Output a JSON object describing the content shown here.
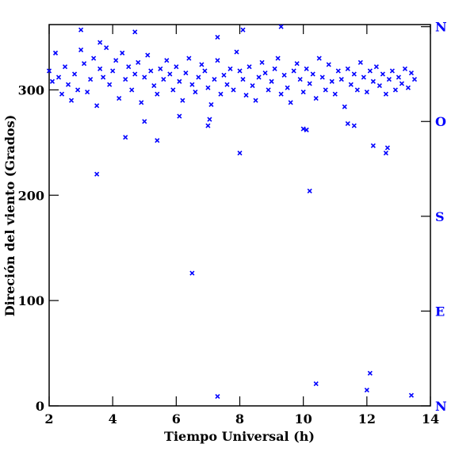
{
  "chart_data": {
    "type": "scatter",
    "xlabel": "Tiempo Universal (h)",
    "ylabel": "Direción del viento (Grados)",
    "xlim": [
      2,
      14
    ],
    "xticks": [
      2,
      4,
      6,
      8,
      10,
      12,
      14
    ],
    "ylim": [
      0,
      362
    ],
    "yticks": [
      0,
      100,
      200,
      300
    ],
    "y2lim": [
      0,
      362
    ],
    "y2ticks": [
      {
        "value": 0,
        "label": "N"
      },
      {
        "value": 90,
        "label": "E"
      },
      {
        "value": 180,
        "label": "S"
      },
      {
        "value": 270,
        "label": "O"
      },
      {
        "value": 360,
        "label": "N"
      }
    ],
    "y2color": "#0000ff",
    "series": [
      {
        "color": "#0000ff",
        "x": [
          2.0,
          2.1,
          2.2,
          2.3,
          2.4,
          2.5,
          2.6,
          2.7,
          2.8,
          2.9,
          3.0,
          3.1,
          3.2,
          3.3,
          3.4,
          3.5,
          3.6,
          3.7,
          3.8,
          3.9,
          4.0,
          4.1,
          4.2,
          4.3,
          4.4,
          4.5,
          4.6,
          4.7,
          4.8,
          4.9,
          5.0,
          5.1,
          5.2,
          5.3,
          5.4,
          5.5,
          5.6,
          5.7,
          5.8,
          5.9,
          6.0,
          6.1,
          6.2,
          6.3,
          6.4,
          6.5,
          6.6,
          6.7,
          6.8,
          6.9,
          7.0,
          7.1,
          7.2,
          7.3,
          7.4,
          7.5,
          7.6,
          7.7,
          7.8,
          7.9,
          8.0,
          8.1,
          8.2,
          8.3,
          8.4,
          8.5,
          8.6,
          8.7,
          8.8,
          8.9,
          9.0,
          9.1,
          9.2,
          9.3,
          9.4,
          9.5,
          9.6,
          9.7,
          9.8,
          9.9,
          10.0,
          10.1,
          10.2,
          10.3,
          10.4,
          10.5,
          10.6,
          10.7,
          10.8,
          10.9,
          11.0,
          11.1,
          11.2,
          11.3,
          11.4,
          11.5,
          11.6,
          11.7,
          11.8,
          11.9,
          12.0,
          12.1,
          12.2,
          12.3,
          12.4,
          12.5,
          12.6,
          12.7,
          12.8,
          12.9,
          13.0,
          13.1,
          13.2,
          13.3,
          13.4,
          13.5,
          3.5,
          4.4,
          5.4,
          6.5,
          7.3,
          8.0,
          10.2,
          10.4,
          12.0,
          12.1,
          12.2,
          12.6,
          12.65,
          13.4,
          10.0,
          10.1,
          11.4,
          11.6,
          7.0,
          7.05,
          6.1,
          5.0,
          3.6,
          3.0,
          4.7,
          8.1,
          9.3,
          7.3
        ],
        "values": [
          318,
          308,
          335,
          312,
          296,
          322,
          305,
          290,
          315,
          300,
          338,
          325,
          298,
          310,
          330,
          285,
          320,
          312,
          340,
          305,
          318,
          328,
          292,
          335,
          310,
          322,
          300,
          315,
          326,
          288,
          312,
          333,
          318,
          304,
          296,
          320,
          310,
          328,
          315,
          300,
          322,
          308,
          290,
          316,
          330,
          305,
          298,
          312,
          324,
          318,
          302,
          286,
          310,
          328,
          296,
          314,
          305,
          320,
          300,
          336,
          318,
          310,
          295,
          322,
          304,
          290,
          312,
          326,
          316,
          300,
          308,
          320,
          330,
          296,
          314,
          302,
          288,
          318,
          325,
          310,
          298,
          320,
          306,
          315,
          292,
          330,
          312,
          300,
          324,
          308,
          296,
          318,
          310,
          284,
          320,
          305,
          315,
          300,
          326,
          312,
          298,
          318,
          308,
          322,
          304,
          315,
          296,
          310,
          318,
          300,
          312,
          306,
          320,
          302,
          316,
          310,
          220,
          255,
          252,
          126,
          9,
          240,
          204,
          21,
          15,
          31,
          247,
          240,
          245,
          10,
          263,
          262,
          268,
          266,
          266,
          272,
          275,
          270,
          345,
          357,
          355,
          357,
          360,
          350
        ]
      }
    ]
  }
}
